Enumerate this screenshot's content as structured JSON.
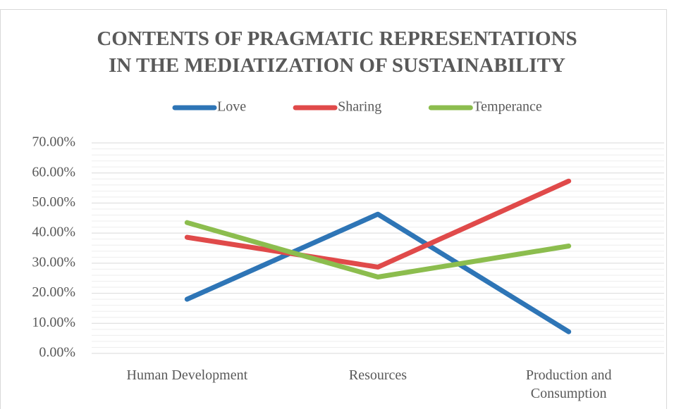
{
  "chart_data": {
    "type": "line",
    "title": "CONTENTS OF PRAGMATIC REPRESENTATIONS IN THE MEDIATIZATION OF SUSTAINABILITY",
    "categories": [
      "Human Development",
      "Resources",
      "Production and Consumption"
    ],
    "series": [
      {
        "name": "Love",
        "color": "#2e75b6",
        "values": [
          18.0,
          46.3,
          7.2
        ]
      },
      {
        "name": "Sharing",
        "color": "#e04a4a",
        "values": [
          38.6,
          28.7,
          57.3
        ]
      },
      {
        "name": "Temperance",
        "color": "#8cbd4e",
        "values": [
          43.5,
          25.4,
          35.7
        ]
      }
    ],
    "ylim": [
      0,
      70
    ],
    "yticks": [
      {
        "value": 0,
        "label": "0.00%"
      },
      {
        "value": 10,
        "label": "10.00%"
      },
      {
        "value": 20,
        "label": "20.00%"
      },
      {
        "value": 30,
        "label": "30.00%"
      },
      {
        "value": 40,
        "label": "40.00%"
      },
      {
        "value": 50,
        "label": "50.00%"
      },
      {
        "value": 60,
        "label": "60.00%"
      },
      {
        "value": 70,
        "label": "70.00%"
      }
    ],
    "grid": true,
    "legend": "top"
  }
}
